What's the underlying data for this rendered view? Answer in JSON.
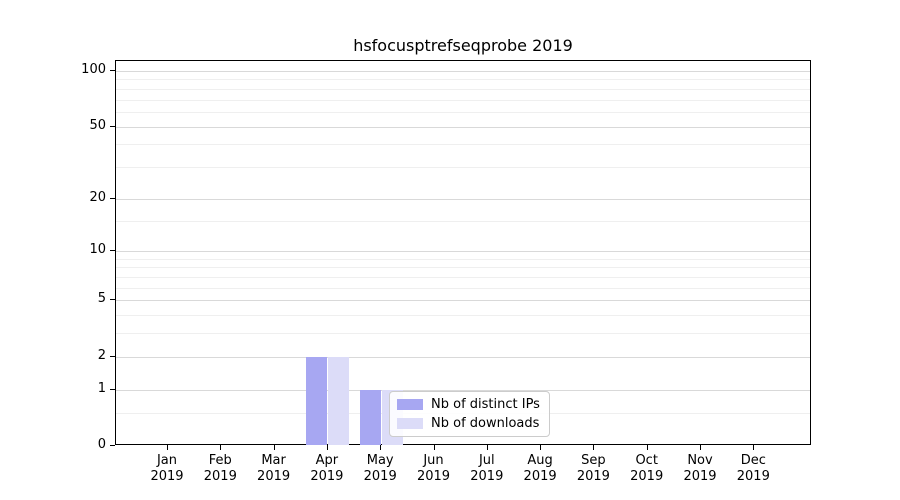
{
  "title": "hsfocusptrefseqprobe 2019",
  "chart_data": {
    "type": "bar",
    "title": "hsfocusptrefseqprobe 2019",
    "categories": [
      "Jan",
      "Feb",
      "Mar",
      "Apr",
      "May",
      "Jun",
      "Jul",
      "Aug",
      "Sep",
      "Oct",
      "Nov",
      "Dec"
    ],
    "x_tick_second_line": "2019",
    "series": [
      {
        "name": "Nb of distinct IPs",
        "color": "#a7a7f2",
        "values": [
          0,
          0,
          0,
          2,
          1,
          0,
          0,
          0,
          0,
          0,
          0,
          0
        ]
      },
      {
        "name": "Nb of downloads",
        "color": "#dcdcf8",
        "values": [
          0,
          0,
          0,
          2,
          1,
          0,
          0,
          0,
          0,
          0,
          0,
          0
        ]
      }
    ],
    "xlabel": "",
    "ylabel": "",
    "y_scale": "log1p",
    "ylim": [
      0,
      113
    ],
    "y_ticks": [
      0,
      1,
      2,
      5,
      10,
      20,
      50,
      100
    ],
    "y_tick_labels": [
      "0",
      "1",
      "2",
      "5",
      "10",
      "20",
      "50",
      "100"
    ],
    "y_minor_ticks": [
      0.5,
      3,
      4,
      6,
      7,
      8,
      9,
      15,
      30,
      40,
      60,
      70,
      80,
      90
    ],
    "grid": "horizontal",
    "legend_position": "lower-center-right-of-bars",
    "colors": {
      "spine": "#000000",
      "grid_major": "#d9d9d9",
      "grid_minor": "#efefef",
      "background": "#ffffff",
      "text": "#000000",
      "legend_border": "#cccccc"
    }
  }
}
